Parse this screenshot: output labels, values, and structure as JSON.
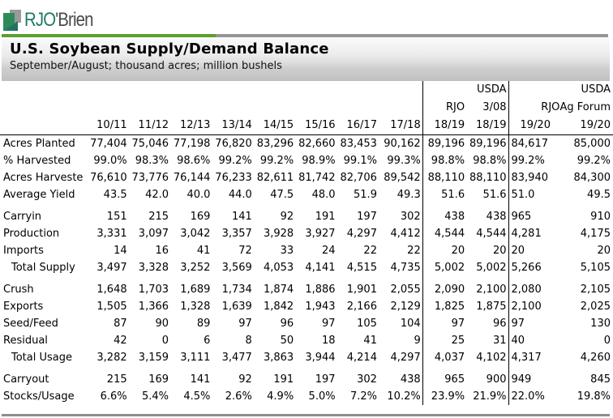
{
  "brand": {
    "logo_text_rjo": "RJO",
    "logo_text_rest": "'Brien",
    "colors": {
      "green": "#5aa02c",
      "gray": "#959595",
      "logo_teal": "#1f7a66"
    }
  },
  "header": {
    "title": "U.S. Soybean Supply/Demand Balance",
    "subtitle": "September/August;  thousand acres;  million bushels"
  },
  "table": {
    "header_rows": [
      [
        "",
        "",
        "",
        "",
        "",
        "",
        "",
        "",
        "",
        "USDA",
        "",
        "USDA"
      ],
      [
        "",
        "",
        "",
        "",
        "",
        "",
        "",
        "",
        "RJO",
        "3/08",
        "RJO",
        "Ag Forum"
      ],
      [
        "",
        "10/11",
        "11/12",
        "12/13",
        "13/14",
        "14/15",
        "15/16",
        "16/17",
        "17/18",
        "18/19",
        "18/19",
        "19/20",
        "19/20"
      ]
    ],
    "columns": [
      "10/11",
      "11/12",
      "12/13",
      "13/14",
      "14/15",
      "15/16",
      "16/17",
      "17/18",
      "18/19 RJO",
      "18/19 USDA 3/08",
      "19/20 RJO",
      "19/20 USDA Ag Forum"
    ],
    "rows": [
      {
        "label": "Acres Planted",
        "values": [
          "77,404",
          "75,046",
          "77,198",
          "76,820",
          "83,296",
          "82,660",
          "83,453",
          "90,162",
          "89,196",
          "89,196",
          "84,617",
          "85,000"
        ]
      },
      {
        "label": "% Harvested",
        "values": [
          "99.0%",
          "98.3%",
          "98.6%",
          "99.2%",
          "99.2%",
          "98.9%",
          "99.1%",
          "99.3%",
          "98.8%",
          "98.8%",
          "99.2%",
          "99.2%"
        ]
      },
      {
        "label": "Acres Harveste",
        "values": [
          "76,610",
          "73,776",
          "76,144",
          "76,233",
          "82,611",
          "81,742",
          "82,706",
          "89,542",
          "88,110",
          "88,110",
          "83,940",
          "84,300"
        ]
      },
      {
        "label": "Average Yield",
        "values": [
          "43.5",
          "42.0",
          "40.0",
          "44.0",
          "47.5",
          "48.0",
          "51.9",
          "49.3",
          "51.6",
          "51.6",
          "51.0",
          "49.5"
        ]
      },
      {
        "label": "Carryin",
        "values": [
          "151",
          "215",
          "169",
          "141",
          "92",
          "191",
          "197",
          "302",
          "438",
          "438",
          "965",
          "910"
        ]
      },
      {
        "label": "Production",
        "values": [
          "3,331",
          "3,097",
          "3,042",
          "3,357",
          "3,928",
          "3,927",
          "4,297",
          "4,412",
          "4,544",
          "4,544",
          "4,281",
          "4,175"
        ]
      },
      {
        "label": "Imports",
        "values": [
          "14",
          "16",
          "41",
          "72",
          "33",
          "24",
          "22",
          "22",
          "20",
          "20",
          "20",
          "20"
        ]
      },
      {
        "label": "Total Supply",
        "indent": true,
        "values": [
          "3,497",
          "3,328",
          "3,252",
          "3,569",
          "4,053",
          "4,141",
          "4,515",
          "4,735",
          "5,002",
          "5,002",
          "5,266",
          "5,105"
        ]
      },
      {
        "label": "Crush",
        "values": [
          "1,648",
          "1,703",
          "1,689",
          "1,734",
          "1,874",
          "1,886",
          "1,901",
          "2,055",
          "2,090",
          "2,100",
          "2,080",
          "2,105"
        ]
      },
      {
        "label": "Exports",
        "values": [
          "1,505",
          "1,366",
          "1,328",
          "1,639",
          "1,842",
          "1,943",
          "2,166",
          "2,129",
          "1,825",
          "1,875",
          "2,100",
          "2,025"
        ]
      },
      {
        "label": "Seed/Feed",
        "values": [
          "87",
          "90",
          "89",
          "97",
          "96",
          "97",
          "105",
          "104",
          "97",
          "96",
          "97",
          "130"
        ]
      },
      {
        "label": "Residual",
        "values": [
          "42",
          "0",
          "6",
          "8",
          "50",
          "18",
          "41",
          "9",
          "25",
          "31",
          "40",
          "0"
        ]
      },
      {
        "label": "Total Usage",
        "indent": true,
        "values": [
          "3,282",
          "3,159",
          "3,111",
          "3,477",
          "3,863",
          "3,944",
          "4,214",
          "4,297",
          "4,037",
          "4,102",
          "4,317",
          "4,260"
        ]
      },
      {
        "label": "Carryout",
        "values": [
          "215",
          "169",
          "141",
          "92",
          "191",
          "197",
          "302",
          "438",
          "965",
          "900",
          "949",
          "845"
        ]
      },
      {
        "label": "Stocks/Usage",
        "values": [
          "6.6%",
          "5.4%",
          "4.5%",
          "2.6%",
          "4.9%",
          "5.0%",
          "7.2%",
          "10.2%",
          "23.9%",
          "21.9%",
          "22.0%",
          "19.8%"
        ]
      }
    ]
  }
}
